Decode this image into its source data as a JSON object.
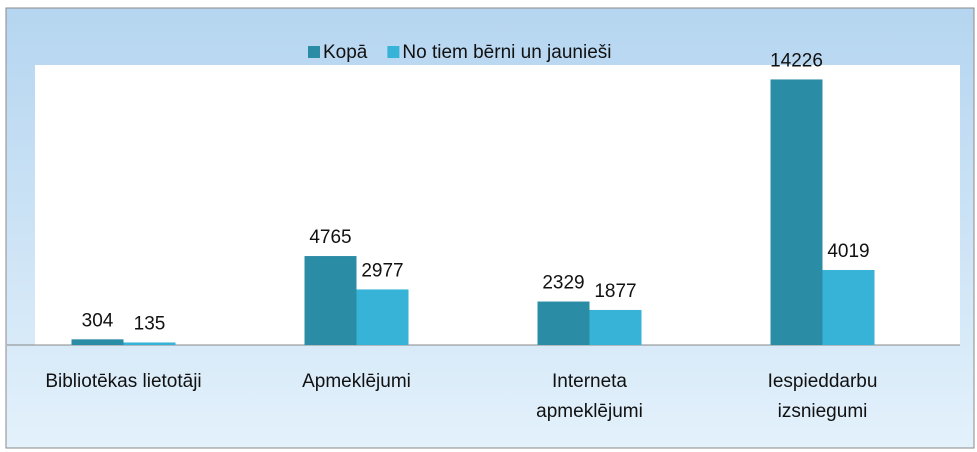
{
  "chart_data": {
    "type": "bar",
    "categories": [
      "Bibliotēkas lietotāji",
      "Apmeklējumi",
      "Interneta\napmeklējumi",
      "Iespieddarbu\nizsniegumi"
    ],
    "series": [
      {
        "name": "Kopā",
        "color": "#2b8ca6",
        "values": [
          304,
          4765,
          2329,
          14226
        ]
      },
      {
        "name": "No tiem bērni un jaunieši",
        "color": "#36b3d6",
        "values": [
          135,
          2977,
          1877,
          4019
        ]
      }
    ],
    "ylim": [
      0,
      15000
    ],
    "legend": "top"
  }
}
